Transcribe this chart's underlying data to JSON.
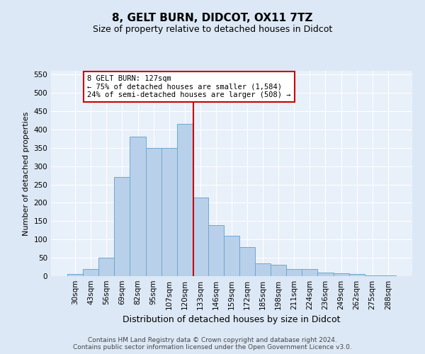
{
  "title1": "8, GELT BURN, DIDCOT, OX11 7TZ",
  "title2": "Size of property relative to detached houses in Didcot",
  "xlabel": "Distribution of detached houses by size in Didcot",
  "ylabel": "Number of detached properties",
  "categories": [
    "30sqm",
    "43sqm",
    "56sqm",
    "69sqm",
    "82sqm",
    "95sqm",
    "107sqm",
    "120sqm",
    "133sqm",
    "146sqm",
    "159sqm",
    "172sqm",
    "185sqm",
    "198sqm",
    "211sqm",
    "224sqm",
    "236sqm",
    "249sqm",
    "262sqm",
    "275sqm",
    "288sqm"
  ],
  "values": [
    5,
    20,
    50,
    270,
    380,
    350,
    350,
    415,
    215,
    140,
    110,
    80,
    35,
    30,
    20,
    20,
    10,
    8,
    5,
    2,
    1
  ],
  "bar_color": "#b8d0ea",
  "bar_edge_color": "#6fa8d0",
  "fig_bg_color": "#dce8f5",
  "ax_bg_color": "#e8f0fa",
  "grid_color": "#ffffff",
  "red_line_color": "#cc0000",
  "annotation_text1": "8 GELT BURN: 127sqm",
  "annotation_text2": "← 75% of detached houses are smaller (1,584)",
  "annotation_text3": "24% of semi-detached houses are larger (508) →",
  "annotation_box_color": "#ffffff",
  "annotation_box_edge": "#cc0000",
  "footer1": "Contains HM Land Registry data © Crown copyright and database right 2024.",
  "footer2": "Contains public sector information licensed under the Open Government Licence v3.0.",
  "ylim": [
    0,
    560
  ],
  "yticks": [
    0,
    50,
    100,
    150,
    200,
    250,
    300,
    350,
    400,
    450,
    500,
    550
  ],
  "title1_fontsize": 11,
  "title2_fontsize": 9,
  "xlabel_fontsize": 9,
  "ylabel_fontsize": 8,
  "tick_fontsize": 7.5,
  "footer_fontsize": 6.5,
  "annotation_fontsize": 7.5
}
